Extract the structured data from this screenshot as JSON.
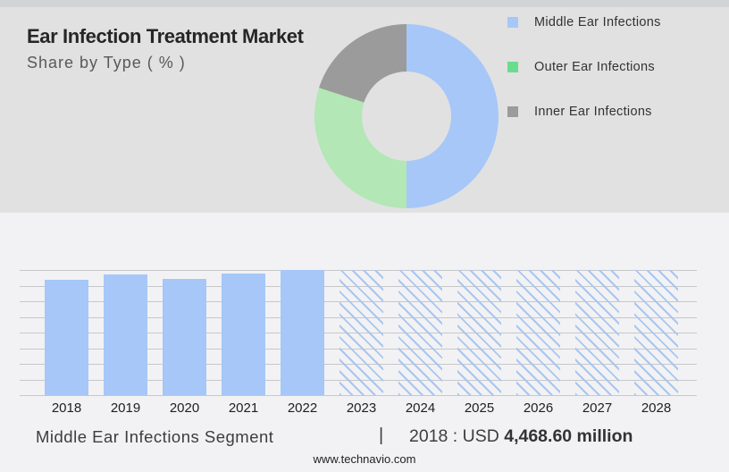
{
  "header": {
    "title": "Ear Infection Treatment Market",
    "subtitle": "Share by Type ( % )"
  },
  "legend": [
    {
      "label": "Middle Ear Infections",
      "color": "#a6c7f7"
    },
    {
      "label": "Outer Ear Infections",
      "color": "#69dc8d"
    },
    {
      "label": "Inner Ear Infections",
      "color": "#9b9b9b"
    }
  ],
  "caption": {
    "segment": "Middle Ear Infections Segment",
    "separator": "|",
    "value_prefix": "2018 : USD ",
    "value_bold": "4,468.60 million"
  },
  "footer": {
    "website": "www.technavio.com"
  },
  "chart_data": [
    {
      "type": "donut",
      "title": "Share by Type ( % )",
      "unit": "%",
      "slices": [
        {
          "label": "Middle Ear Infections",
          "value": 50,
          "color": "#a6c7f7"
        },
        {
          "label": "Outer Ear Infections",
          "value": 30,
          "color": "#b3e7b6"
        },
        {
          "label": "Inner Ear Infections",
          "value": 20,
          "color": "#9b9b9b"
        }
      ],
      "hole_ratio": 0.49,
      "legend_position": "right"
    },
    {
      "type": "bar",
      "categories": [
        "2018",
        "2019",
        "2020",
        "2021",
        "2022",
        "2023",
        "2024",
        "2025",
        "2026",
        "2027",
        "2028"
      ],
      "series": [
        {
          "name": "Middle Ear Infections Segment",
          "values_pct_of_max": [
            92.1,
            96.4,
            92.9,
            97.1,
            100,
            100,
            100,
            100,
            100,
            100,
            100
          ],
          "hatched_forecast": [
            false,
            false,
            false,
            false,
            false,
            true,
            true,
            true,
            true,
            true,
            true
          ]
        }
      ],
      "known_value": {
        "year": "2018",
        "label": "USD 4,468.60 million"
      },
      "bar_color": "#a6c7f7",
      "hatch_color": "#a9c6ef",
      "gridline_count": 9,
      "grid": true,
      "xlabel": "",
      "ylabel": ""
    }
  ],
  "colors": {
    "top_strip": "#d2d3d5",
    "header_bg": "#e1e1e2",
    "body_bg": "#f2f2f4",
    "gridline": "#c7c8ca",
    "title_text": "#262626",
    "subtitle_text": "#595959",
    "legend_text": "#333333",
    "axis_text": "#1f1f1f",
    "caption_text": "#3d3d3d",
    "value_text": "#333333",
    "footer_text": "#222222",
    "bar_blue": "#a6c7f7",
    "hatch_blue": "#a9c6ef",
    "donut_green": "#b3e7b6",
    "legend_green": "#69dc8d",
    "slice_gray": "#9b9b9b"
  }
}
